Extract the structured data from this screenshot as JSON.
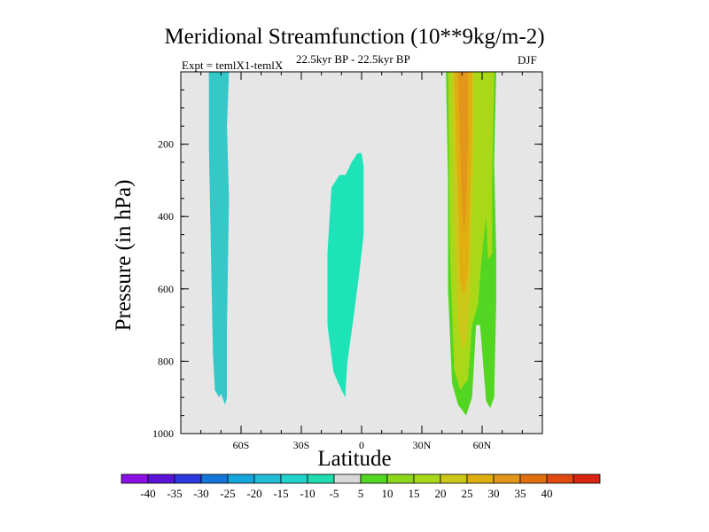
{
  "chart_data": {
    "type": "heatmap",
    "title": "Meridional Streamfunction (10**9kg/m-2)",
    "subtitle_left": "Expt = temlX1-temlX",
    "subtitle_center": "22.5kyr BP - 22.5kyr BP",
    "subtitle_right": "DJF",
    "xlabel": "Latitude",
    "ylabel": "Pressure (in hPa)",
    "xlim": [
      -90,
      90
    ],
    "ylim": [
      1000,
      0
    ],
    "x_ticks": [
      {
        "value": -60,
        "label": "60S"
      },
      {
        "value": -30,
        "label": "30S"
      },
      {
        "value": 0,
        "label": "0"
      },
      {
        "value": 30,
        "label": "30N"
      },
      {
        "value": 60,
        "label": "60N"
      }
    ],
    "y_ticks": [
      {
        "value": 200,
        "label": "200"
      },
      {
        "value": 400,
        "label": "400"
      },
      {
        "value": 600,
        "label": "600"
      },
      {
        "value": 800,
        "label": "800"
      },
      {
        "value": 1000,
        "label": "1000"
      }
    ],
    "background_color": "#e6e6e6",
    "regions": [
      {
        "name": "southern-polar-cell",
        "level": -10,
        "color": "#35c8c8",
        "points": [
          [
            -76,
            0
          ],
          [
            -66,
            0
          ],
          [
            -67,
            150
          ],
          [
            -66,
            350
          ],
          [
            -67,
            700
          ],
          [
            -67,
            900
          ],
          [
            -68,
            920
          ],
          [
            -70,
            890
          ],
          [
            -71,
            900
          ],
          [
            -73,
            880
          ],
          [
            -74,
            780
          ],
          [
            -75,
            500
          ],
          [
            -76,
            200
          ]
        ]
      },
      {
        "name": "tropical-cell",
        "level": -5,
        "color": "#1ee3b8",
        "points": [
          [
            0,
            225
          ],
          [
            1,
            260
          ],
          [
            1,
            450
          ],
          [
            -1,
            550
          ],
          [
            -4,
            680
          ],
          [
            -7,
            800
          ],
          [
            -8,
            880
          ],
          [
            -8,
            900
          ],
          [
            -10,
            880
          ],
          [
            -14,
            830
          ],
          [
            -17,
            700
          ],
          [
            -17,
            500
          ],
          [
            -15,
            320
          ],
          [
            -11,
            285
          ],
          [
            -8,
            285
          ],
          [
            -5,
            250
          ],
          [
            -2,
            225
          ]
        ]
      },
      {
        "name": "northern-cell-west-outer",
        "level": 5,
        "color": "#52d622",
        "points": [
          [
            42,
            0
          ],
          [
            67,
            0
          ],
          [
            66,
            250
          ],
          [
            67,
            500
          ],
          [
            67,
            640
          ],
          [
            66,
            900
          ],
          [
            64,
            930
          ],
          [
            62,
            910
          ],
          [
            59,
            700
          ],
          [
            57,
            700
          ],
          [
            55,
            900
          ],
          [
            52,
            950
          ],
          [
            48,
            920
          ],
          [
            45,
            860
          ],
          [
            43,
            600
          ],
          [
            43,
            300
          ]
        ]
      },
      {
        "name": "northern-cell-mid",
        "level": 10,
        "color": "#a8d818",
        "points": [
          [
            43,
            0
          ],
          [
            66,
            0
          ],
          [
            65,
            300
          ],
          [
            65,
            500
          ],
          [
            63,
            520
          ],
          [
            62,
            400
          ],
          [
            60,
            500
          ],
          [
            58,
            640
          ],
          [
            55,
            700
          ],
          [
            53,
            850
          ],
          [
            49,
            880
          ],
          [
            46,
            820
          ],
          [
            44,
            500
          ]
        ]
      },
      {
        "name": "northern-cell-core-15",
        "level": 15,
        "color": "#cbc81a",
        "points": [
          [
            45,
            0
          ],
          [
            56,
            0
          ],
          [
            56,
            200
          ],
          [
            55,
            400
          ],
          [
            54,
            620
          ],
          [
            52,
            750
          ],
          [
            50,
            770
          ],
          [
            48,
            700
          ],
          [
            46,
            400
          ]
        ]
      },
      {
        "name": "northern-cell-core-20",
        "level": 20,
        "color": "#e0ae10",
        "points": [
          [
            46,
            0
          ],
          [
            55,
            0
          ],
          [
            55,
            150
          ],
          [
            54,
            350
          ],
          [
            53,
            560
          ],
          [
            51,
            620
          ],
          [
            49,
            580
          ],
          [
            48,
            350
          ]
        ]
      },
      {
        "name": "northern-cell-core-25",
        "level": 25,
        "color": "#e2961a",
        "points": [
          [
            48,
            0
          ],
          [
            53,
            0
          ],
          [
            53,
            200
          ],
          [
            52,
            380
          ],
          [
            51,
            440
          ],
          [
            50,
            380
          ],
          [
            49,
            200
          ]
        ]
      }
    ],
    "colorbar": {
      "colors": [
        "#8a10e6",
        "#5a14d8",
        "#2a3adc",
        "#1476d8",
        "#14a6dc",
        "#22bcd6",
        "#22d2cc",
        "#20dcae",
        "#d8d8d8",
        "#52d622",
        "#8cd81c",
        "#a8d818",
        "#cbc81a",
        "#e0ae10",
        "#e2961a",
        "#e07010",
        "#e04a10",
        "#d82410"
      ],
      "labels": [
        "-40",
        "-35",
        "-30",
        "-25",
        "-20",
        "-15",
        "-10",
        "-5",
        "5",
        "10",
        "15",
        "20",
        "25",
        "30",
        "35",
        "40"
      ]
    }
  }
}
